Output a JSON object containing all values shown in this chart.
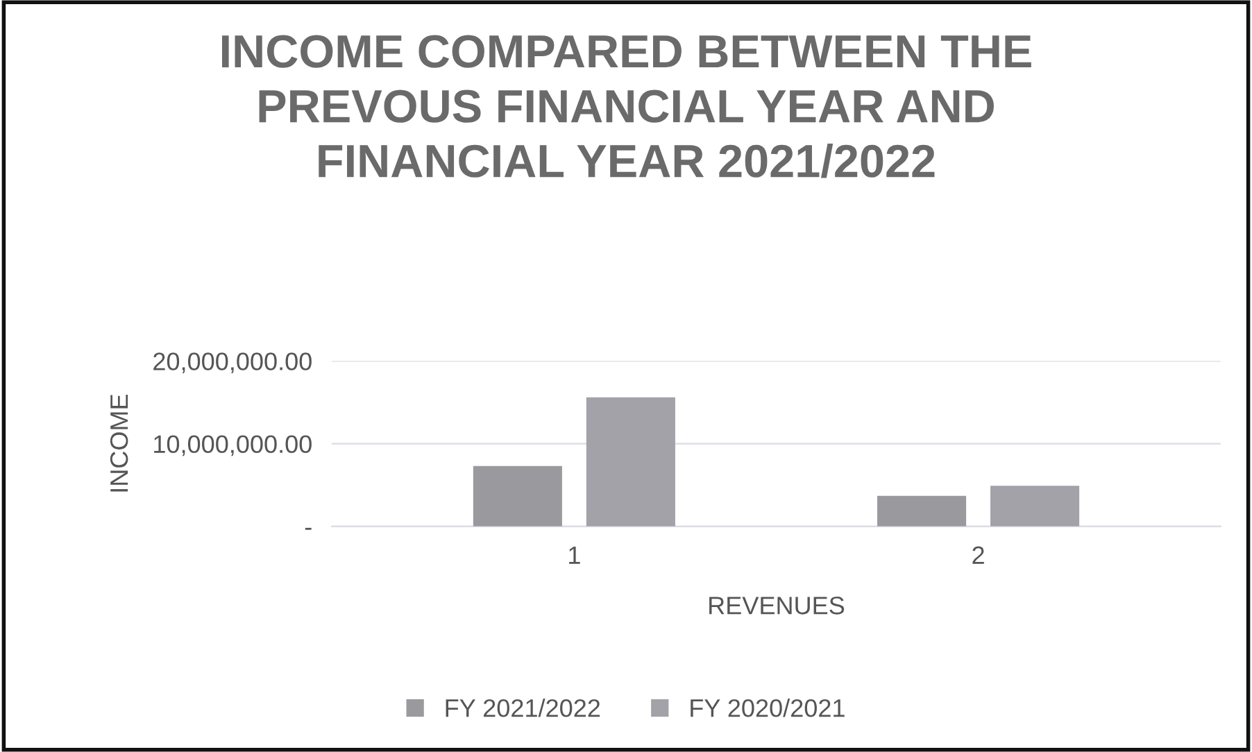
{
  "chart_data": {
    "type": "bar",
    "title": "INCOME COMPARED BETWEEN THE\nPREVOUS FINANCIAL YEAR AND\nFINANCIAL YEAR 2021/2022",
    "xlabel": "REVENUES",
    "ylabel": "INCOME",
    "categories": [
      "1",
      "2"
    ],
    "series": [
      {
        "name": "FY 2021/2022",
        "color": "#9a9a9e",
        "values": [
          7300000,
          3700000
        ]
      },
      {
        "name": "FY 2020/2021",
        "color": "#a2a2a8",
        "values": [
          15600000,
          4900000
        ]
      }
    ],
    "ylim": [
      0,
      20000000
    ],
    "yticks": [
      {
        "value": 0,
        "label": "-"
      },
      {
        "value": 10000000,
        "label": "10,000,000.00"
      },
      {
        "value": 20000000,
        "label": "20,000,000.00"
      }
    ],
    "grid": "y",
    "legend": "bottom"
  }
}
